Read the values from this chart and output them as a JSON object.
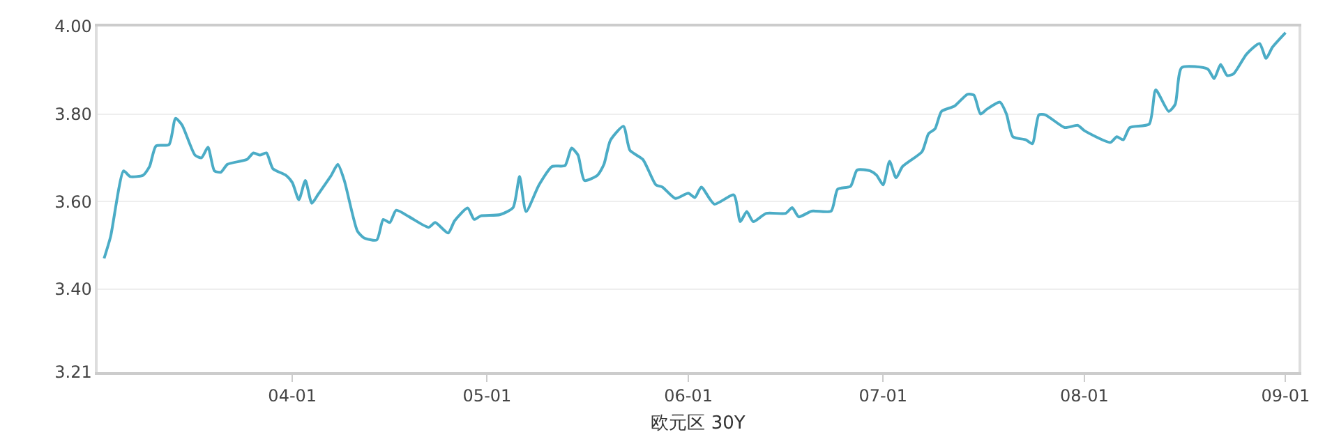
{
  "chart_data": {
    "type": "line",
    "xlabel": "欧元区 30Y",
    "x": [
      "--03-03",
      "--03-04",
      "--03-06",
      "--03-07",
      "--03-09",
      "--03-10",
      "--03-11",
      "--03-13",
      "--03-14",
      "--03-15",
      "--03-17",
      "--03-18",
      "--03-19",
      "--03-20",
      "--03-21",
      "--03-22",
      "--03-25",
      "--03-26",
      "--03-27",
      "--03-28",
      "--03-29",
      "--03-31",
      "--04-01",
      "--04-02",
      "--04-03",
      "--04-04",
      "--04-05",
      "--04-07",
      "--04-08",
      "--04-09",
      "--04-11",
      "--04-12",
      "--04-14",
      "--04-15",
      "--04-16",
      "--04-17",
      "--04-19",
      "--04-22",
      "--04-23",
      "--04-25",
      "--04-26",
      "--04-28",
      "--04-29",
      "--04-30",
      "--05-03",
      "--05-05",
      "--05-06",
      "--05-07",
      "--05-09",
      "--05-11",
      "--05-13",
      "--05-14",
      "--05-15",
      "--05-16",
      "--05-18",
      "--05-19",
      "--05-20",
      "--05-22",
      "--05-23",
      "--05-25",
      "--05-27",
      "--05-28",
      "--05-30",
      "--06-01",
      "--06-02",
      "--06-03",
      "--06-05",
      "--06-08",
      "--06-09",
      "--06-10",
      "--06-11",
      "--06-13",
      "--06-16",
      "--06-17",
      "--06-18",
      "--06-20",
      "--06-23",
      "--06-24",
      "--06-26",
      "--06-27",
      "--06-29",
      "--06-30",
      "--07-01",
      "--07-02",
      "--07-03",
      "--07-04",
      "--07-07",
      "--07-08",
      "--07-09",
      "--07-10",
      "--07-12",
      "--07-14",
      "--07-15",
      "--07-16",
      "--07-17",
      "--07-19",
      "--07-20",
      "--07-21",
      "--07-23",
      "--07-24",
      "--07-25",
      "--07-26",
      "--07-29",
      "--07-31",
      "--08-01",
      "--08-05",
      "--08-06",
      "--08-07",
      "--08-08",
      "--08-11",
      "--08-12",
      "--08-14",
      "--08-15",
      "--08-16",
      "--08-20",
      "--08-21",
      "--08-22",
      "--08-23",
      "--08-24",
      "--08-26",
      "--08-28",
      "--08-29",
      "--08-30",
      "--09-01"
    ],
    "series": [
      {
        "color": "#4bacc6",
        "values": [
          3.47,
          3.52,
          3.67,
          3.657,
          3.66,
          3.68,
          3.727,
          3.73,
          3.79,
          3.775,
          3.706,
          3.7,
          3.724,
          3.67,
          3.667,
          3.685,
          3.696,
          3.711,
          3.706,
          3.711,
          3.675,
          3.66,
          3.643,
          3.604,
          3.648,
          3.596,
          3.617,
          3.66,
          3.685,
          3.648,
          3.533,
          3.517,
          3.512,
          3.559,
          3.552,
          3.58,
          3.565,
          3.541,
          3.552,
          3.528,
          3.556,
          3.585,
          3.559,
          3.567,
          3.57,
          3.586,
          3.657,
          3.577,
          3.638,
          3.68,
          3.682,
          3.722,
          3.706,
          3.648,
          3.66,
          3.685,
          3.74,
          3.772,
          3.717,
          3.696,
          3.638,
          3.633,
          3.607,
          3.619,
          3.609,
          3.633,
          3.594,
          3.615,
          3.554,
          3.577,
          3.554,
          3.573,
          3.573,
          3.586,
          3.565,
          3.578,
          3.578,
          3.628,
          3.635,
          3.672,
          3.67,
          3.66,
          3.638,
          3.692,
          3.654,
          3.68,
          3.714,
          3.755,
          3.766,
          3.806,
          3.818,
          3.845,
          3.843,
          3.8,
          3.811,
          3.827,
          3.8,
          3.748,
          3.741,
          3.732,
          3.798,
          3.798,
          3.769,
          3.774,
          3.762,
          3.735,
          3.748,
          3.741,
          3.769,
          3.777,
          3.855,
          3.806,
          3.822,
          3.906,
          3.903,
          3.881,
          3.913,
          3.888,
          3.892,
          3.937,
          3.961,
          3.927,
          3.953,
          3.986
        ]
      }
    ],
    "xlim": [
      "--03-02",
      "--09-03"
    ],
    "xticks": [
      {
        "value": "--04-01",
        "label": "04-01"
      },
      {
        "value": "--05-01",
        "label": "05-01"
      },
      {
        "value": "--06-01",
        "label": "06-01"
      },
      {
        "value": "--07-01",
        "label": "07-01"
      },
      {
        "value": "--08-01",
        "label": "08-01"
      },
      {
        "value": "--09-01",
        "label": "09-01"
      }
    ],
    "ylim": [
      3.21,
      4.0
    ],
    "yticks": [
      {
        "value": 3.21,
        "label": "3.21"
      },
      {
        "value": 3.4,
        "label": "3.40"
      },
      {
        "value": 3.6,
        "label": "3.60"
      },
      {
        "value": 3.8,
        "label": "3.80"
      },
      {
        "value": 4.0,
        "label": "4.00"
      }
    ],
    "grid": "y",
    "marker": "none",
    "line_style": "solid"
  }
}
